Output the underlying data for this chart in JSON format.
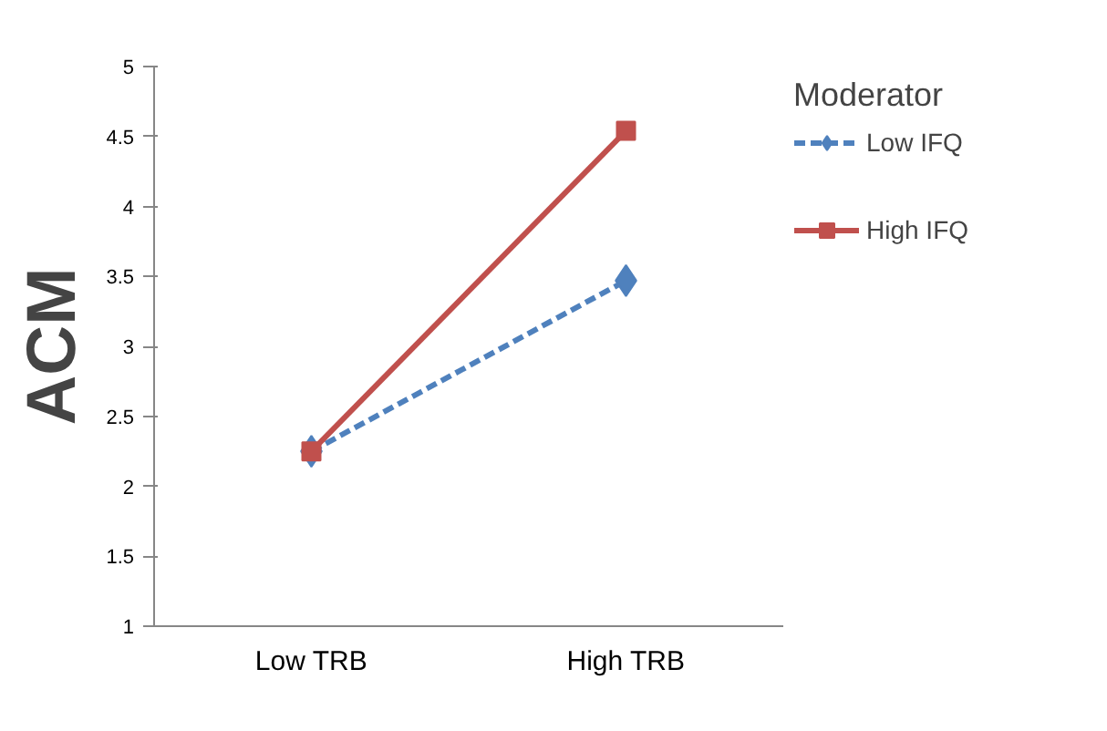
{
  "chart_data": {
    "type": "line",
    "ylabel": "ACM",
    "legend_title": "Moderator",
    "categories": [
      "Low TRB",
      "High TRB"
    ],
    "series": [
      {
        "name": "Low IFQ",
        "color": "#4f81bd",
        "values": [
          2.25,
          3.47
        ],
        "marker": "diamond",
        "line_style": "dashed"
      },
      {
        "name": "High IFQ",
        "color": "#c0504d",
        "values": [
          2.25,
          4.54
        ],
        "marker": "square",
        "line_style": "solid"
      }
    ],
    "ylim": [
      1,
      5
    ],
    "yticks": [
      1,
      1.5,
      2,
      2.5,
      3,
      3.5,
      4,
      4.5,
      5
    ],
    "grid": false,
    "legend": "right"
  }
}
